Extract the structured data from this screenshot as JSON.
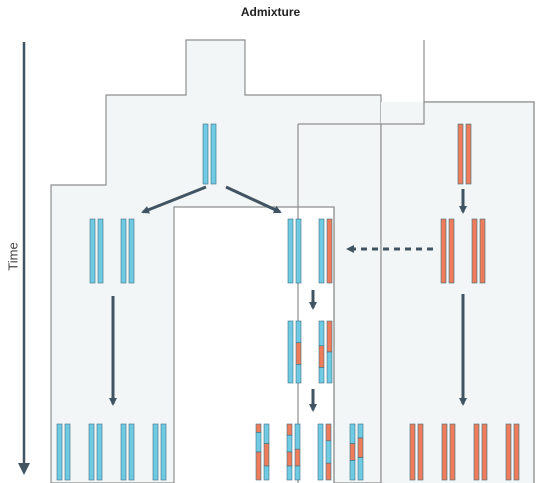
{
  "title": "Admixture",
  "time_axis_label": "Time",
  "colors": {
    "population_fill": "#f2f6f6",
    "population_outline": "#8f8f8f",
    "ancestry_a": "#6fcbe3",
    "ancestry_b": "#ee7c5b",
    "arrow": "#415463"
  }
}
